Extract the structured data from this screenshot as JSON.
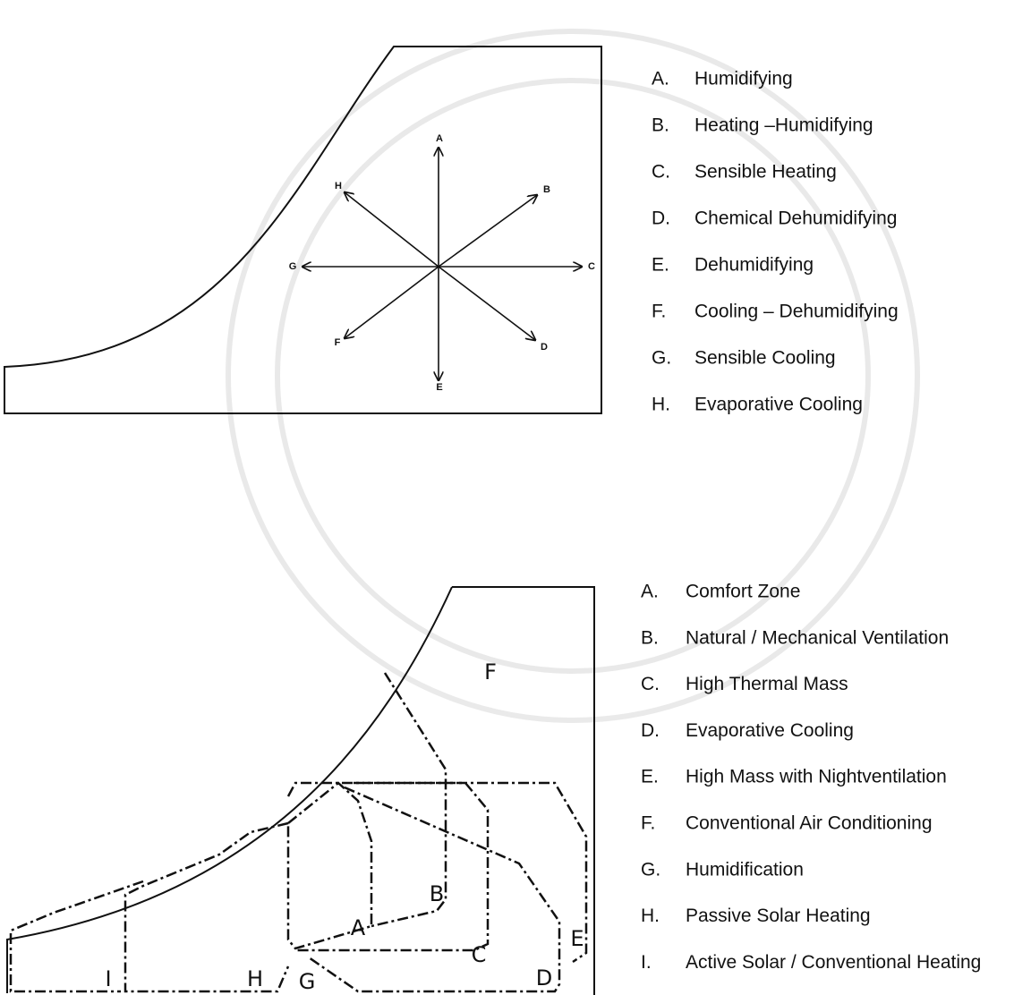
{
  "process_diagram": {
    "arrow_labels": [
      "A",
      "B",
      "C",
      "D",
      "E",
      "F",
      "G",
      "H"
    ],
    "legend": [
      {
        "letter": "A.",
        "text": "Humidifying"
      },
      {
        "letter": "B.",
        "text": "Heating –Humidifying"
      },
      {
        "letter": "C.",
        "text": "Sensible Heating"
      },
      {
        "letter": "D.",
        "text": "Chemical  Dehumidifying"
      },
      {
        "letter": "E.",
        "text": "Dehumidifying"
      },
      {
        "letter": "F.",
        "text": "Cooling – Dehumidifying"
      },
      {
        "letter": "G.",
        "text": "Sensible Cooling"
      },
      {
        "letter": "H.",
        "text": "Evaporative Cooling"
      }
    ]
  },
  "strategy_diagram": {
    "zone_labels": [
      "F",
      "B",
      "A",
      "C",
      "E",
      "D",
      "G",
      "H",
      "I"
    ],
    "legend": [
      {
        "letter": "A.",
        "text": "Comfort Zone"
      },
      {
        "letter": "B.",
        "text": "Natural / Mechanical Ventilation"
      },
      {
        "letter": "C.",
        "text": "High Thermal Mass"
      },
      {
        "letter": "D.",
        "text": "Evaporative Cooling"
      },
      {
        "letter": "E.",
        "text": "High Mass  with Nightventilation"
      },
      {
        "letter": "F.",
        "text": "Conventional Air Conditioning"
      },
      {
        "letter": "G.",
        "text": "Humidification"
      },
      {
        "letter": "H.",
        "text": "Passive Solar  Heating"
      },
      {
        "letter": "I.",
        "text": "Active Solar / Conventional Heating"
      }
    ]
  }
}
